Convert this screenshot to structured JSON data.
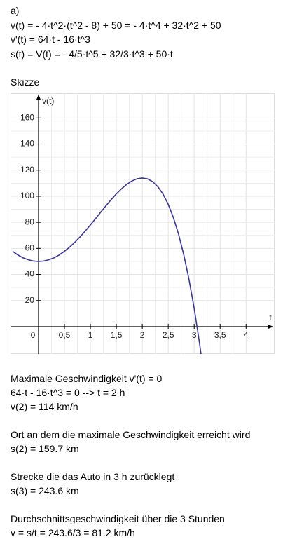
{
  "part": "a)",
  "equations": [
    "v(t) = - 4·t^2·(t^2 - 8) + 50 = - 4·t^4 + 32·t^2 + 50",
    "v'(t) = 64·t - 16·t^3",
    "s(t) = V(t) = - 4/5·t^5 + 32/3·t^3 + 50·t"
  ],
  "sketch_label": "Skizze",
  "chart_data": {
    "type": "line",
    "x_label": "t",
    "y_label": "v(t)",
    "x": [
      -0.5,
      -0.4,
      -0.3,
      -0.2,
      -0.1,
      0,
      0.1,
      0.2,
      0.3,
      0.4,
      0.5,
      0.6,
      0.7,
      0.8,
      0.9,
      1.0,
      1.1,
      1.2,
      1.3,
      1.4,
      1.5,
      1.6,
      1.7,
      1.8,
      1.9,
      2.0,
      2.1,
      2.2,
      2.3,
      2.4,
      2.5,
      2.6,
      2.7,
      2.8,
      2.9,
      3.0,
      3.1,
      3.15
    ],
    "series": [
      {
        "name": "v(t)",
        "color": "#3a3399",
        "values": [
          57.8,
          55.0,
          52.8,
          51.3,
          50.3,
          50,
          50.3,
          51.3,
          52.8,
          55.0,
          57.8,
          61.0,
          64.7,
          68.8,
          73.3,
          78,
          82.9,
          87.8,
          92.7,
          97.4,
          101.8,
          105.7,
          109.1,
          111.7,
          113.4,
          114,
          113.3,
          111.2,
          107.3,
          101.6,
          93.8,
          83.5,
          70.7,
          55.0,
          36.2,
          14,
          -11.9,
          -26.3
        ]
      }
    ],
    "xlim": [
      -0.54,
      4.55
    ],
    "ylim": [
      -21,
      179
    ],
    "xticks": [
      0,
      {
        "value": 0.5,
        "label": "0,5"
      },
      1,
      {
        "value": 1.5,
        "label": "1,5"
      },
      2,
      {
        "value": 2.5,
        "label": "2,5"
      },
      3,
      {
        "value": 3.5,
        "label": "3,5"
      },
      4
    ],
    "yticks": [
      20,
      40,
      60,
      80,
      100,
      120,
      140,
      160
    ],
    "grid": true
  },
  "sections": [
    [
      "Maximale Geschwindigkeit v'(t) = 0",
      "64·t - 16·t^3 = 0 --> t = 2 h",
      "v(2) = 114 km/h"
    ],
    [
      "Ort an dem die maximale Geschwindigkeit erreicht wird",
      "s(2) = 159.7 km"
    ],
    [
      "Strecke die das Auto in 3 h zurücklegt",
      "s(3) = 243.6 km"
    ],
    [
      "Durchschnittsgeschwindigkeit über die 3 Stunden",
      "v = s/t = 243.6/3 = 81.2 km/h"
    ]
  ]
}
